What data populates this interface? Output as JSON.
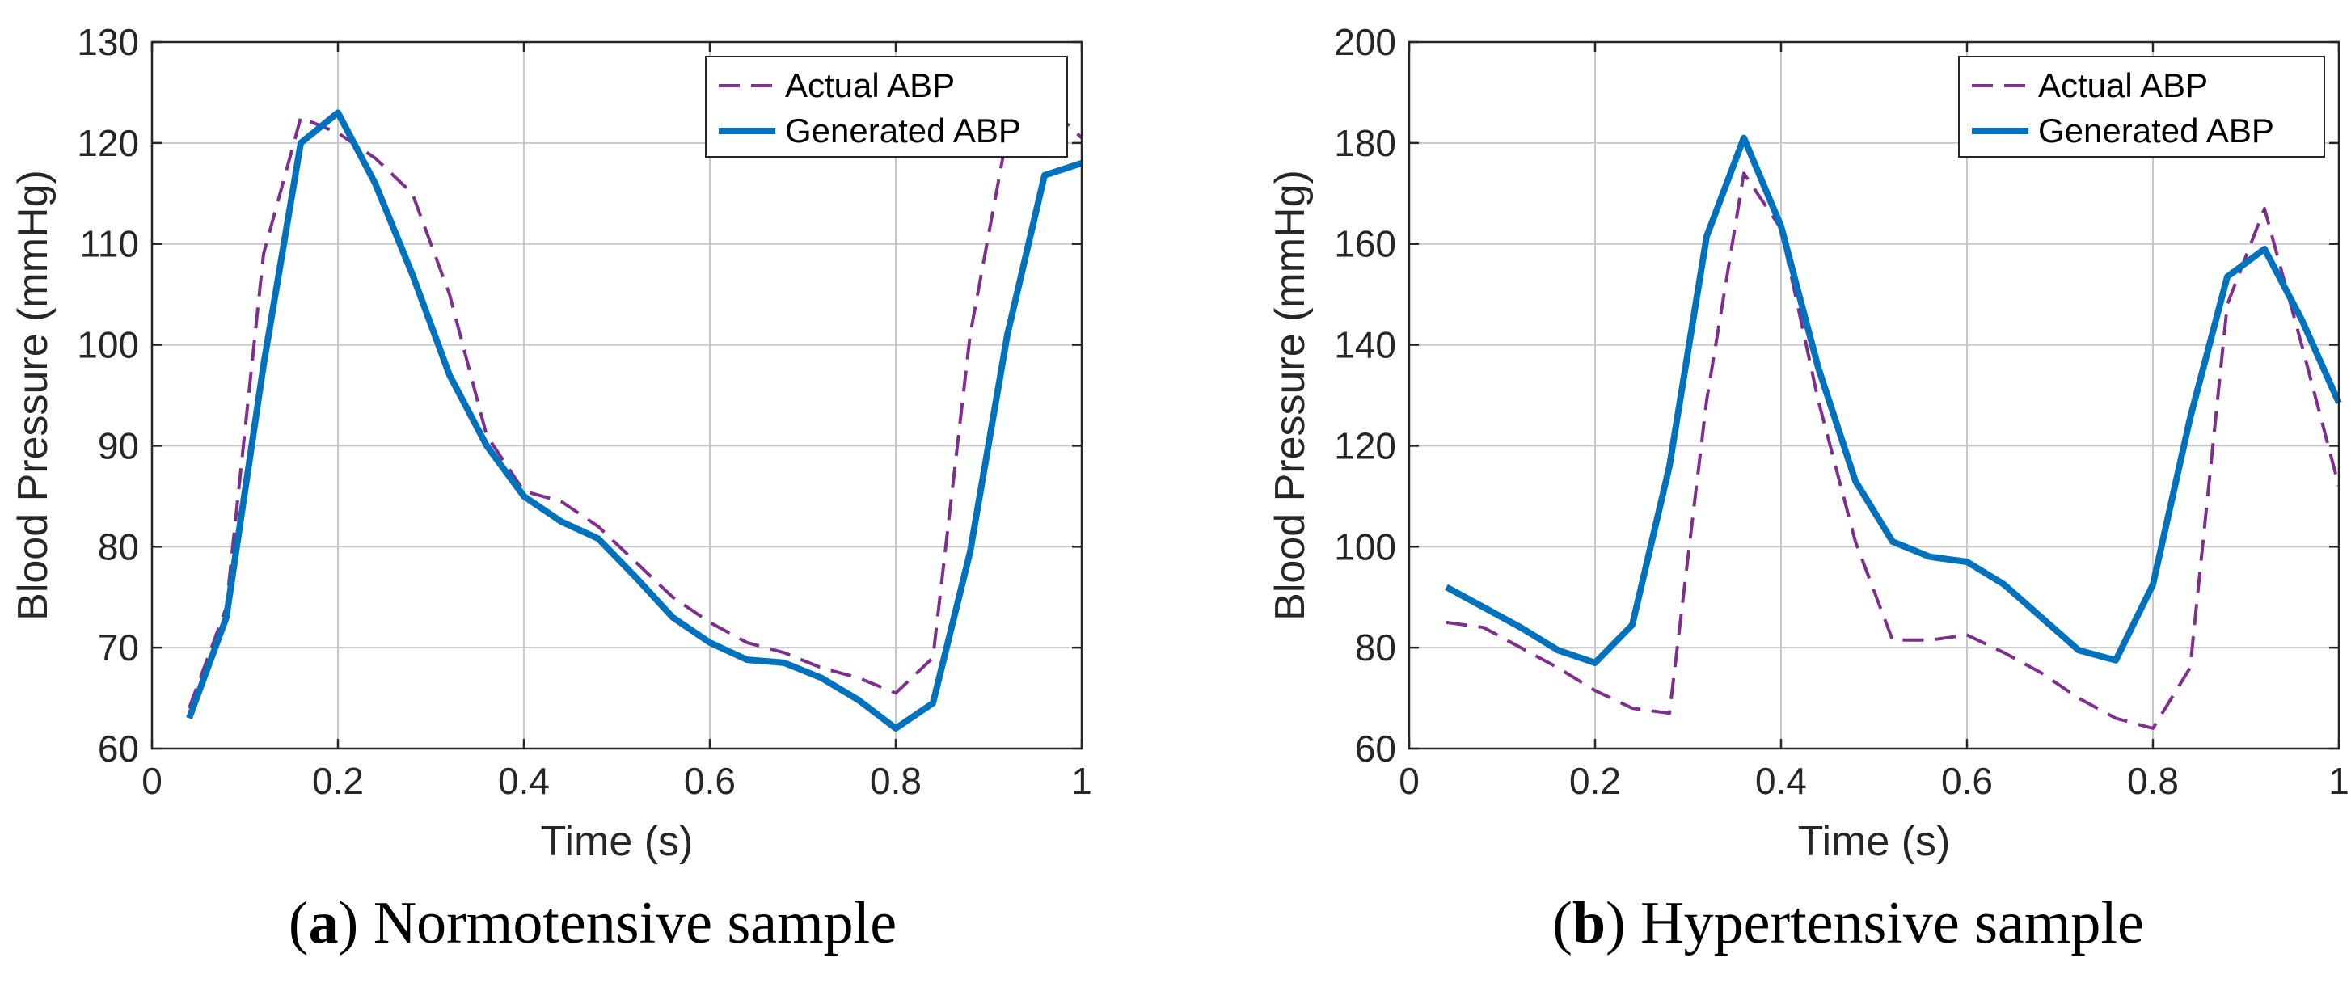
{
  "colors": {
    "actual": "#7E2F8E",
    "generated": "#0072BD",
    "grid": "#c8c8c8",
    "axis": "#262626"
  },
  "chart_data": [
    {
      "type": "line",
      "panel_letter": "a",
      "caption": "Normotensive sample",
      "xlabel": "Time (s)",
      "ylabel": "Blood Pressure (mmHg)",
      "xlim": [
        0,
        1
      ],
      "ylim": [
        60,
        130
      ],
      "grid": true,
      "xticks": [
        0,
        0.2,
        0.4,
        0.6,
        0.8,
        1
      ],
      "xtick_labels": [
        "0",
        "0.2",
        "0.4",
        "0.6",
        "0.8",
        "1"
      ],
      "yticks": [
        60,
        70,
        80,
        90,
        100,
        110,
        120,
        130
      ],
      "ytick_labels": [
        "60",
        "70",
        "80",
        "90",
        "100",
        "110",
        "120",
        "130"
      ],
      "legend_position": "top-right",
      "x": [
        0.04,
        0.08,
        0.12,
        0.16,
        0.2,
        0.24,
        0.28,
        0.32,
        0.36,
        0.4,
        0.44,
        0.48,
        0.52,
        0.56,
        0.6,
        0.64,
        0.68,
        0.72,
        0.76,
        0.8,
        0.84,
        0.88,
        0.92,
        0.96,
        1.0
      ],
      "series": [
        {
          "name": "Actual ABP",
          "style": "dashed",
          "values": [
            64,
            74,
            109,
            122.5,
            121,
            118.5,
            115,
            105,
            91,
            85.5,
            84.5,
            82,
            78.5,
            75,
            72.5,
            70.5,
            69.5,
            68,
            67,
            65.5,
            69,
            101,
            121,
            124,
            120.5
          ]
        },
        {
          "name": "Generated ABP",
          "style": "solid",
          "values": [
            63,
            73,
            98,
            120,
            123,
            116,
            107,
            97,
            90,
            85,
            82.5,
            80.8,
            77,
            73,
            70.5,
            68.8,
            68.5,
            67,
            64.8,
            62,
            64.5,
            79.5,
            101,
            116.8,
            118
          ]
        }
      ]
    },
    {
      "type": "line",
      "panel_letter": "b",
      "caption": "Hypertensive sample",
      "xlabel": "Time (s)",
      "ylabel": "Blood Pressure (mmHg)",
      "xlim": [
        0,
        1
      ],
      "ylim": [
        60,
        200
      ],
      "grid": true,
      "xticks": [
        0,
        0.2,
        0.4,
        0.6,
        0.8,
        1
      ],
      "xtick_labels": [
        "0",
        "0.2",
        "0.4",
        "0.6",
        "0.8",
        "1"
      ],
      "yticks": [
        60,
        80,
        100,
        120,
        140,
        160,
        180,
        200
      ],
      "ytick_labels": [
        "60",
        "80",
        "100",
        "120",
        "140",
        "160",
        "180",
        "200"
      ],
      "legend_position": "top-right",
      "x": [
        0.04,
        0.08,
        0.12,
        0.16,
        0.2,
        0.24,
        0.28,
        0.32,
        0.36,
        0.4,
        0.44,
        0.48,
        0.52,
        0.56,
        0.6,
        0.64,
        0.68,
        0.72,
        0.76,
        0.8,
        0.84,
        0.88,
        0.92,
        0.96,
        1.0
      ],
      "series": [
        {
          "name": "Actual ABP",
          "style": "dashed",
          "values": [
            85,
            84,
            80,
            76,
            71.5,
            68,
            67,
            129,
            174,
            163,
            129,
            101,
            81.5,
            81.5,
            82.5,
            79,
            75,
            70,
            66,
            64,
            76,
            148,
            167,
            140,
            112
          ]
        },
        {
          "name": "Generated ABP",
          "style": "solid",
          "values": [
            92,
            88,
            84,
            79.5,
            77,
            84.5,
            116,
            161.5,
            181,
            163.5,
            135.5,
            113,
            101,
            98,
            97,
            92.5,
            86,
            79.5,
            77.5,
            92.5,
            125.5,
            153.5,
            159,
            145,
            128.5
          ]
        }
      ]
    }
  ]
}
